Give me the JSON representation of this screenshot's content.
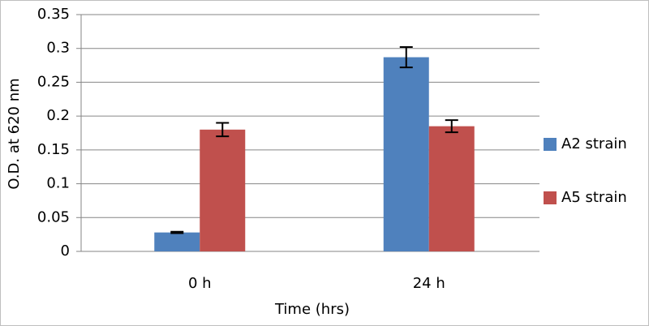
{
  "chart_data": {
    "type": "bar",
    "x_label": "Time (hrs)",
    "y_label": "O.D. at 620 nm",
    "categories": [
      "0 h",
      "24 h"
    ],
    "series": [
      {
        "name": "A2 strain",
        "color": "#4f81bd",
        "values": [
          0.028,
          0.287
        ],
        "errors": [
          0.001,
          0.015
        ]
      },
      {
        "name": "A5 strain",
        "color": "#c0504d",
        "values": [
          0.18,
          0.185
        ],
        "errors": [
          0.01,
          0.009
        ]
      }
    ],
    "ylim": [
      0,
      0.35
    ],
    "yticks": [
      0,
      0.05,
      0.1,
      0.15,
      0.2,
      0.25,
      0.3,
      0.35
    ],
    "grid": true,
    "legend": "right"
  }
}
